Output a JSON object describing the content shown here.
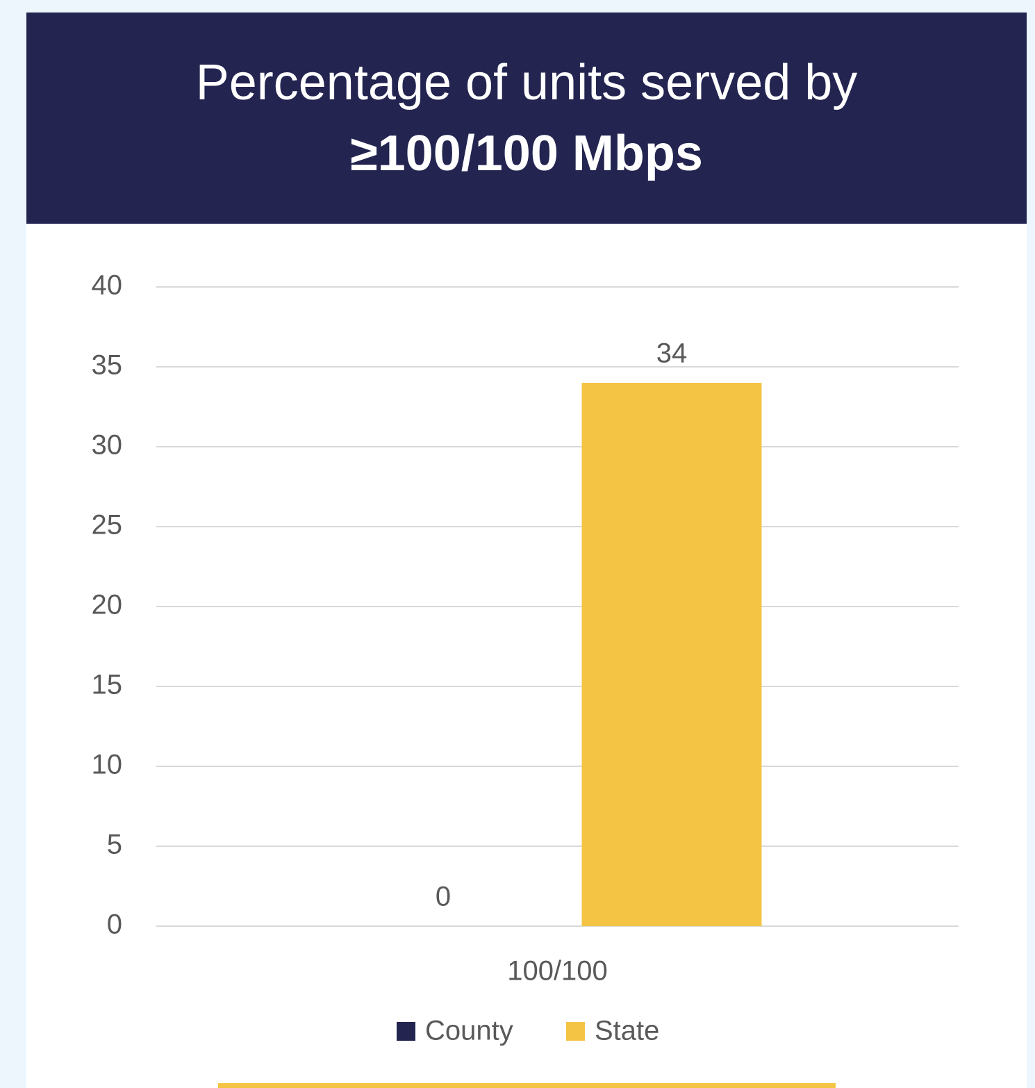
{
  "chart_data": {
    "type": "bar",
    "title": [
      "Percentage of units served by",
      "≥100/100 Mbps"
    ],
    "categories": [
      "100/100"
    ],
    "series": [
      {
        "name": "County",
        "color": "#232450",
        "values": [
          0
        ]
      },
      {
        "name": "State",
        "color": "#f4c544",
        "values": [
          34
        ]
      }
    ],
    "ylim": [
      0,
      40
    ],
    "yticks": [
      0,
      5,
      10,
      15,
      20,
      25,
      30,
      35,
      40
    ],
    "grid": true,
    "legend": "bottom"
  }
}
